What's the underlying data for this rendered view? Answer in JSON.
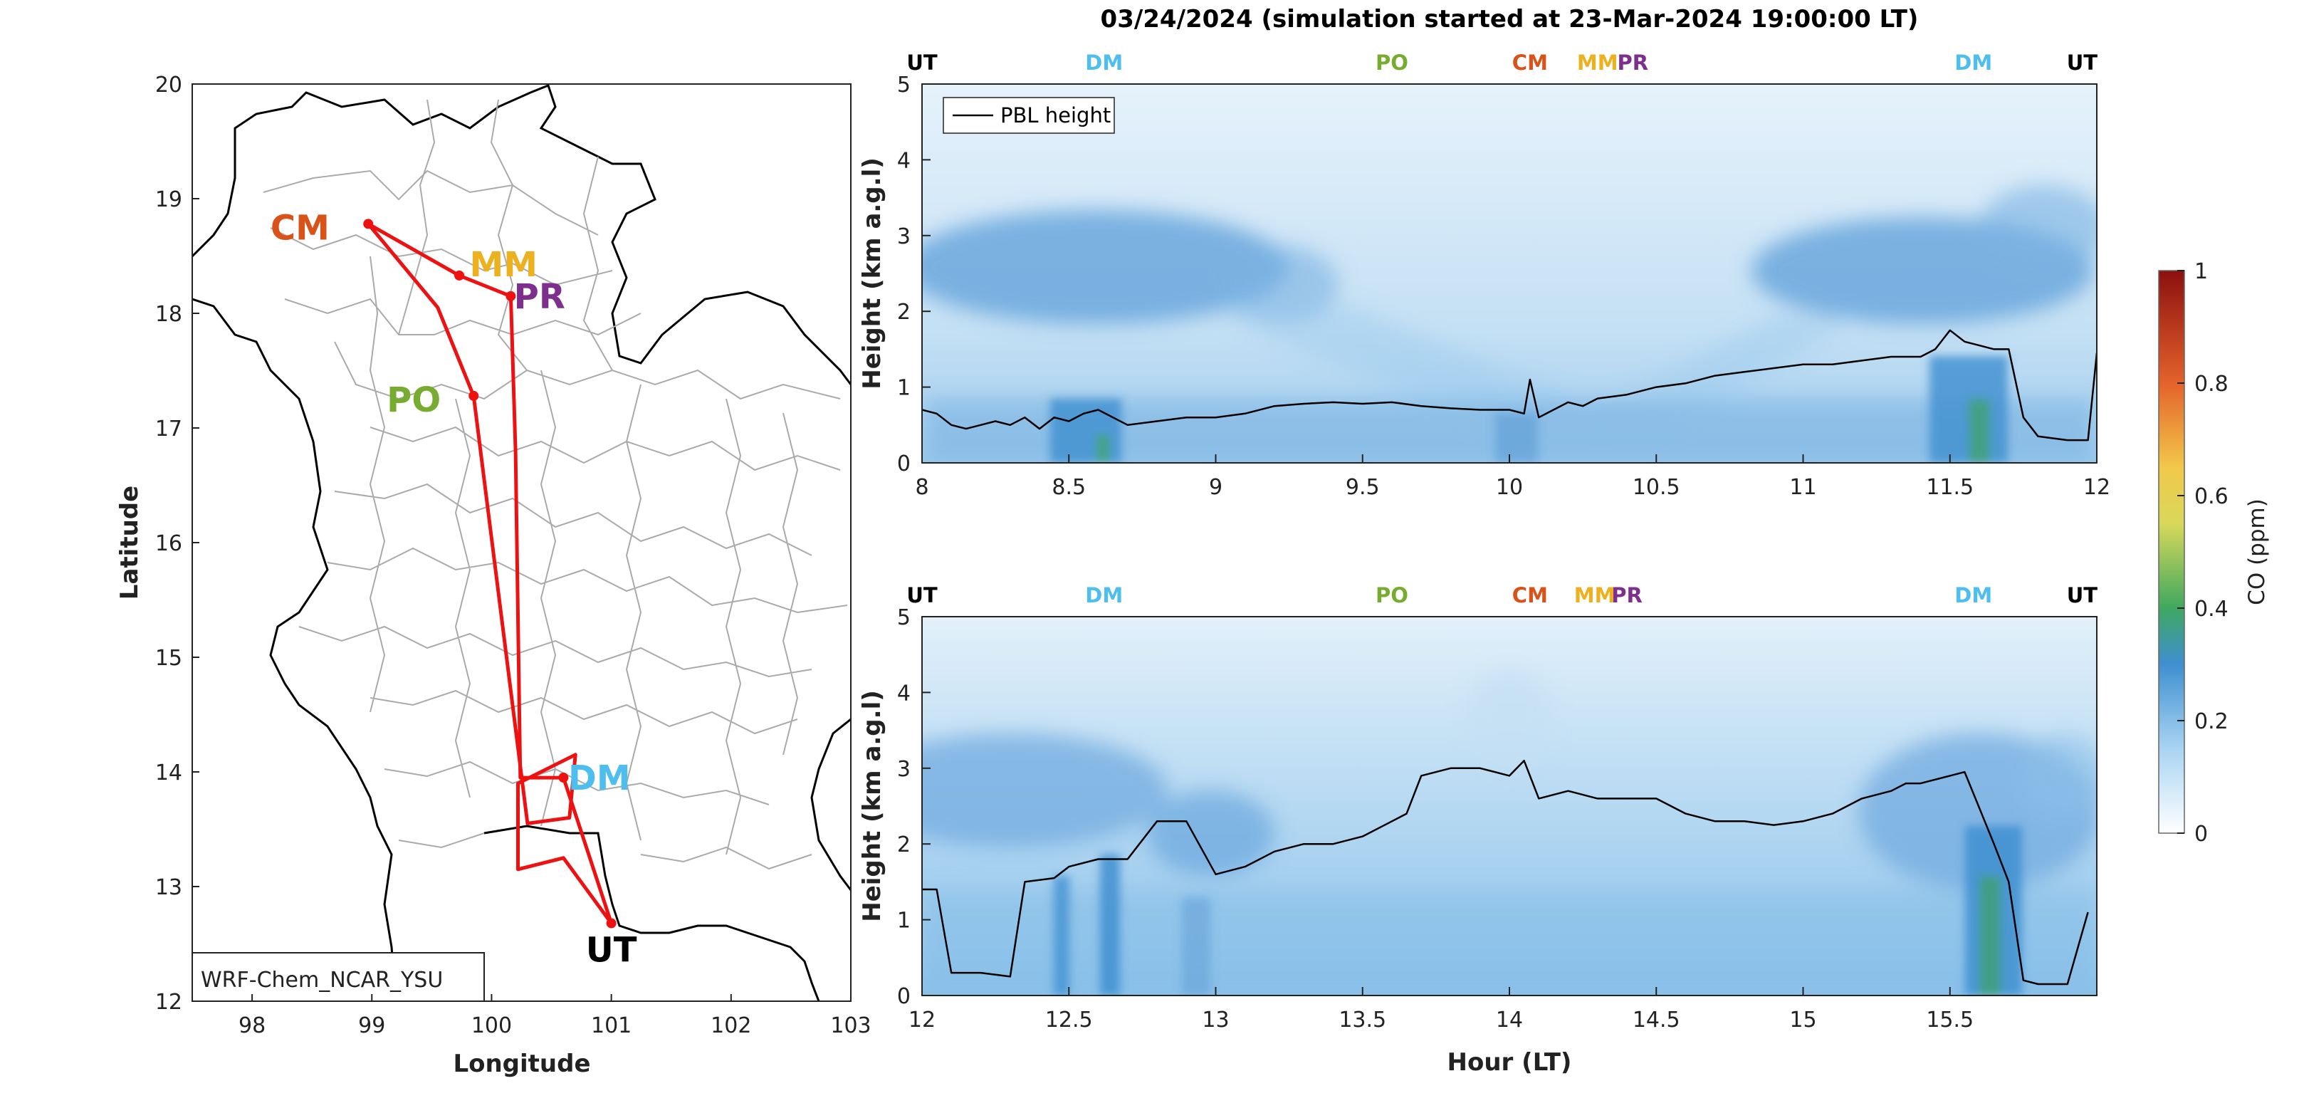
{
  "title": "03/24/2024 (simulation started at 23-Mar-2024 19:00:00 LT)",
  "colors": {
    "UT": "#000000",
    "DM": "#4dbeee",
    "PO": "#77ac30",
    "CM": "#d95319",
    "MM": "#edb120",
    "PR": "#7e2f8e",
    "route": "#ee1111",
    "pbl": "#000000",
    "border": "#aaaaaa"
  },
  "map": {
    "xlabel": "Longitude",
    "ylabel": "Latitude",
    "xlim": [
      97.5,
      103
    ],
    "ylim": [
      12,
      20
    ],
    "xticks": [
      "98",
      "99",
      "100",
      "101",
      "102",
      "103"
    ],
    "yticks": [
      "12",
      "13",
      "14",
      "15",
      "16",
      "17",
      "18",
      "19",
      "20"
    ],
    "model_label": "WRF-Chem_NCAR_YSU",
    "route": [
      [
        98.97,
        18.78
      ],
      [
        99.73,
        18.33
      ],
      [
        100.16,
        18.15
      ],
      [
        100.2,
        16.8
      ],
      [
        100.24,
        13.95
      ],
      [
        100.6,
        13.95
      ],
      [
        101.0,
        12.68
      ],
      [
        100.6,
        13.25
      ],
      [
        100.22,
        13.15
      ],
      [
        100.22,
        13.9
      ],
      [
        100.7,
        14.15
      ],
      [
        100.65,
        13.6
      ],
      [
        100.3,
        13.55
      ],
      [
        99.85,
        17.28
      ],
      [
        99.55,
        18.05
      ],
      [
        98.97,
        18.78
      ]
    ],
    "stations": [
      {
        "code": "CM",
        "lon": 98.97,
        "lat": 18.78,
        "lx": 98.4,
        "ly": 18.75
      },
      {
        "code": "MM",
        "lon": 99.73,
        "lat": 18.33,
        "lx": 100.1,
        "ly": 18.43
      },
      {
        "code": "PR",
        "lon": 100.16,
        "lat": 18.15,
        "lx": 100.4,
        "ly": 18.15
      },
      {
        "code": "PO",
        "lon": 99.85,
        "lat": 17.28,
        "lx": 99.35,
        "ly": 17.25
      },
      {
        "code": "DM",
        "lon": 100.6,
        "lat": 13.95,
        "lx": 100.9,
        "ly": 13.95
      },
      {
        "code": "UT",
        "lon": 101.0,
        "lat": 12.68,
        "lx": 101.0,
        "ly": 12.45
      }
    ]
  },
  "panels": [
    {
      "xlim": [
        8,
        12
      ],
      "xticks": [
        "8",
        "8.5",
        "9",
        "9.5",
        "10",
        "10.5",
        "11",
        "11.5",
        "12"
      ],
      "markers": [
        {
          "code": "UT",
          "x": 8.0
        },
        {
          "code": "DM",
          "x": 8.62
        },
        {
          "code": "PO",
          "x": 9.6
        },
        {
          "code": "CM",
          "x": 10.07
        },
        {
          "code": "MM",
          "x": 10.3
        },
        {
          "code": "PR",
          "x": 10.42
        },
        {
          "code": "DM",
          "x": 11.58
        },
        {
          "code": "UT",
          "x": 11.95
        }
      ]
    },
    {
      "xlim": [
        12,
        16
      ],
      "xticks": [
        "12",
        "12.5",
        "13",
        "13.5",
        "14",
        "14.5",
        "15",
        "15.5"
      ],
      "markers": [
        {
          "code": "UT",
          "x": 12.0
        },
        {
          "code": "DM",
          "x": 12.62
        },
        {
          "code": "PO",
          "x": 13.6
        },
        {
          "code": "CM",
          "x": 14.07
        },
        {
          "code": "MM",
          "x": 14.29
        },
        {
          "code": "PR",
          "x": 14.4
        },
        {
          "code": "DM",
          "x": 15.58
        },
        {
          "code": "UT",
          "x": 15.95
        }
      ],
      "xlabel": "Hour (LT)"
    }
  ],
  "ylabel": "Height (km a.g.l)",
  "yticks": [
    "0",
    "1",
    "2",
    "3",
    "4",
    "5"
  ],
  "legend_label": "PBL height",
  "colorbar": {
    "label": "CO (ppm)",
    "ticks": [
      "0",
      "0.2",
      "0.4",
      "0.6",
      "0.8",
      "1"
    ]
  },
  "chart_data": [
    {
      "type": "line",
      "series": [
        {
          "name": "PBL height",
          "x": [
            8.0,
            8.05,
            8.1,
            8.15,
            8.2,
            8.25,
            8.3,
            8.35,
            8.4,
            8.45,
            8.5,
            8.55,
            8.6,
            8.65,
            8.7,
            8.8,
            8.9,
            9.0,
            9.1,
            9.2,
            9.3,
            9.4,
            9.5,
            9.6,
            9.7,
            9.8,
            9.9,
            10.0,
            10.05,
            10.07,
            10.1,
            10.15,
            10.2,
            10.25,
            10.3,
            10.4,
            10.5,
            10.6,
            10.7,
            10.8,
            10.9,
            11.0,
            11.1,
            11.2,
            11.3,
            11.4,
            11.45,
            11.5,
            11.55,
            11.6,
            11.65,
            11.7,
            11.75,
            11.8,
            11.9,
            11.97,
            12.0
          ],
          "y": [
            0.7,
            0.65,
            0.5,
            0.45,
            0.5,
            0.55,
            0.5,
            0.6,
            0.45,
            0.6,
            0.55,
            0.65,
            0.7,
            0.6,
            0.5,
            0.55,
            0.6,
            0.6,
            0.65,
            0.75,
            0.78,
            0.8,
            0.78,
            0.8,
            0.75,
            0.72,
            0.7,
            0.7,
            0.65,
            1.1,
            0.6,
            0.7,
            0.8,
            0.75,
            0.85,
            0.9,
            1.0,
            1.05,
            1.15,
            1.2,
            1.25,
            1.3,
            1.3,
            1.35,
            1.4,
            1.4,
            1.5,
            1.75,
            1.6,
            1.55,
            1.5,
            1.5,
            0.6,
            0.35,
            0.3,
            0.3,
            1.45
          ]
        }
      ],
      "xlim": [
        8,
        12
      ],
      "ylim": [
        0,
        5
      ]
    },
    {
      "type": "line",
      "series": [
        {
          "name": "PBL height",
          "x": [
            12.0,
            12.05,
            12.1,
            12.2,
            12.3,
            12.35,
            12.45,
            12.5,
            12.6,
            12.7,
            12.8,
            12.9,
            13.0,
            13.1,
            13.2,
            13.3,
            13.4,
            13.5,
            13.6,
            13.65,
            13.7,
            13.8,
            13.9,
            14.0,
            14.05,
            14.1,
            14.2,
            14.3,
            14.4,
            14.5,
            14.6,
            14.7,
            14.8,
            14.9,
            15.0,
            15.1,
            15.2,
            15.3,
            15.35,
            15.4,
            15.5,
            15.55,
            15.65,
            15.7,
            15.75,
            15.8,
            15.9,
            15.97
          ],
          "y": [
            1.4,
            1.4,
            0.3,
            0.3,
            0.25,
            1.5,
            1.55,
            1.7,
            1.8,
            1.8,
            2.3,
            2.3,
            1.6,
            1.7,
            1.9,
            2.0,
            2.0,
            2.1,
            2.3,
            2.4,
            2.9,
            3.0,
            3.0,
            2.9,
            3.1,
            2.6,
            2.7,
            2.6,
            2.6,
            2.6,
            2.4,
            2.3,
            2.3,
            2.25,
            2.3,
            2.4,
            2.6,
            2.7,
            2.8,
            2.8,
            2.9,
            2.95,
            2.0,
            1.5,
            0.2,
            0.15,
            0.15,
            1.1
          ]
        }
      ],
      "xlim": [
        12,
        16
      ],
      "ylim": [
        0,
        5
      ]
    }
  ]
}
